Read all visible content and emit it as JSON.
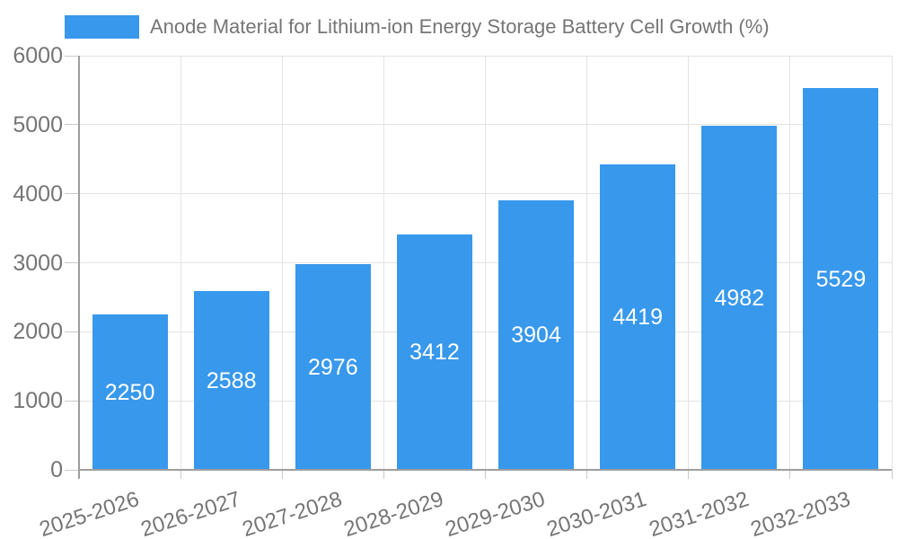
{
  "chart_data": {
    "type": "bar",
    "title": "Anode Material for Lithium-ion Energy Storage Battery Cell Growth (%)",
    "legend_position": "top",
    "categories": [
      "2025-2026",
      "2026-2027",
      "2027-2028",
      "2028-2029",
      "2029-2030",
      "2030-2031",
      "2031-2032",
      "2032-2033"
    ],
    "values": [
      2250,
      2588,
      2976,
      3412,
      3904,
      4419,
      4982,
      5529
    ],
    "xlabel": "",
    "ylabel": "",
    "ylim": [
      0,
      6000
    ],
    "yticks": [
      0,
      1000,
      2000,
      3000,
      4000,
      5000,
      6000
    ],
    "grid": true,
    "x_label_rotation_deg": -18,
    "colors": {
      "bar": "#3898ec",
      "bar_value_text": "#ffffff",
      "axis_text": "#757575",
      "grid": "#e3e3e3",
      "tick": "#c9c9c9",
      "axis_line": "#9e9e9e"
    }
  }
}
